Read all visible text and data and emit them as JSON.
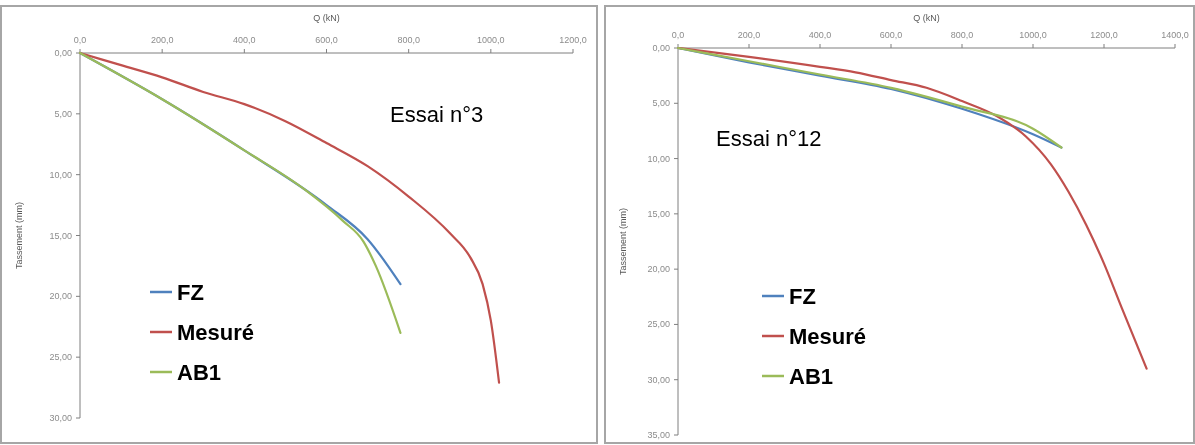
{
  "chart_data": [
    {
      "type": "line",
      "xlabel": "Q (kN)",
      "ylabel": "Tassement (mm)",
      "annotations": [
        "Essai n°3"
      ],
      "legend": "bottom left",
      "line_style": "solid",
      "xlim": [
        0,
        1200
      ],
      "xticks": [
        {
          "value": 0,
          "label": "0,0"
        },
        {
          "value": 200,
          "label": "200,0"
        },
        {
          "value": 400,
          "label": "400,0"
        },
        {
          "value": 600,
          "label": "600,0"
        },
        {
          "value": 800,
          "label": "800,0"
        },
        {
          "value": 1000,
          "label": "1000,0"
        },
        {
          "value": 1200,
          "label": "1200,0"
        }
      ],
      "ylim": [
        30,
        0
      ],
      "yticks": [
        {
          "value": 0,
          "label": "0,00"
        },
        {
          "value": 5,
          "label": "5,00"
        },
        {
          "value": 10,
          "label": "10,00"
        },
        {
          "value": 15,
          "label": "15,00"
        },
        {
          "value": 20,
          "label": "20,00"
        },
        {
          "value": 25,
          "label": "25,00"
        },
        {
          "value": 30,
          "label": "30,00"
        }
      ],
      "series": [
        {
          "name": "FZ",
          "color": "#4f81bd",
          "x": [
            0,
            200,
            400,
            600,
            700,
            780
          ],
          "values": [
            0,
            3.8,
            8,
            12.5,
            15.3,
            19
          ]
        },
        {
          "name": "Mesuré",
          "color": "#c0504d",
          "x": [
            0,
            100,
            200,
            300,
            400,
            500,
            600,
            700,
            800,
            900,
            950,
            980,
            1000,
            1020
          ],
          "values": [
            0,
            1,
            2,
            3.2,
            4.2,
            5.6,
            7.4,
            9.3,
            11.8,
            14.8,
            16.8,
            19,
            22,
            27.1
          ]
        },
        {
          "name": "AB1",
          "color": "#9bbb59",
          "x": [
            0,
            200,
            400,
            550,
            640,
            690,
            720,
            780
          ],
          "values": [
            0,
            3.8,
            8,
            11.3,
            13.8,
            15.5,
            17.5,
            23
          ]
        }
      ]
    },
    {
      "type": "line",
      "xlabel": "Q (kN)",
      "ylabel": "Tassement (mm)",
      "annotations": [
        "Essai n°12"
      ],
      "legend": "bottom left",
      "line_style": "solid",
      "xlim": [
        0,
        1400
      ],
      "xticks": [
        {
          "value": 0,
          "label": "0,0"
        },
        {
          "value": 200,
          "label": "200,0"
        },
        {
          "value": 400,
          "label": "400,0"
        },
        {
          "value": 600,
          "label": "600,0"
        },
        {
          "value": 800,
          "label": "800,0"
        },
        {
          "value": 1000,
          "label": "1000,0"
        },
        {
          "value": 1200,
          "label": "1200,0"
        },
        {
          "value": 1400,
          "label": "1400,0"
        }
      ],
      "ylim": [
        35,
        0
      ],
      "yticks": [
        {
          "value": 0,
          "label": "0,00"
        },
        {
          "value": 5,
          "label": "5,00"
        },
        {
          "value": 10,
          "label": "10,00"
        },
        {
          "value": 15,
          "label": "15,00"
        },
        {
          "value": 20,
          "label": "20,00"
        },
        {
          "value": 25,
          "label": "25,00"
        },
        {
          "value": 30,
          "label": "30,00"
        },
        {
          "value": 35,
          "label": "35,00"
        }
      ],
      "series": [
        {
          "name": "FZ",
          "color": "#4f81bd",
          "x": [
            0,
            200,
            400,
            600,
            800,
            1000,
            1080
          ],
          "values": [
            0,
            1.3,
            2.5,
            3.7,
            5.5,
            7.8,
            9
          ]
        },
        {
          "name": "Mesuré",
          "color": "#c0504d",
          "x": [
            0,
            200,
            400,
            500,
            600,
            700,
            800,
            900,
            980,
            1050,
            1100,
            1150,
            1200,
            1250,
            1320
          ],
          "values": [
            0,
            0.8,
            1.7,
            2.2,
            2.9,
            3.6,
            4.8,
            6.2,
            8,
            10.5,
            13,
            16,
            19.5,
            23.5,
            29
          ]
        },
        {
          "name": "AB1",
          "color": "#9bbb59",
          "x": [
            0,
            200,
            400,
            600,
            800,
            1000,
            1080
          ],
          "values": [
            0,
            1.2,
            2.4,
            3.6,
            5.3,
            7.3,
            9
          ]
        }
      ]
    }
  ]
}
